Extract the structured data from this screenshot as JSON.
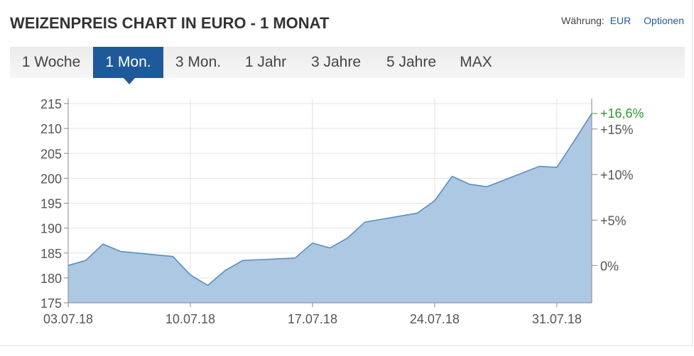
{
  "header": {
    "title": "WEIZENPREIS CHART IN EURO - 1 MONAT",
    "currency_label": "Währung:",
    "currency_value": "EUR",
    "options_label": "Optionen"
  },
  "tabs": [
    {
      "label": "1 Woche",
      "active": false
    },
    {
      "label": "1 Mon.",
      "active": true
    },
    {
      "label": "3 Mon.",
      "active": false
    },
    {
      "label": "1 Jahr",
      "active": false
    },
    {
      "label": "3 Jahre",
      "active": false
    },
    {
      "label": "5 Jahre",
      "active": false
    },
    {
      "label": "MAX",
      "active": false
    }
  ],
  "colors": {
    "accent": "#1e5a99",
    "area_fill": "#a9c5e0",
    "line": "#5b8ec2",
    "gain": "#2e9a2e"
  },
  "chart_data": {
    "type": "area",
    "x_start": "2018-07-03",
    "x": [
      "2018-07-03",
      "2018-07-04",
      "2018-07-05",
      "2018-07-06",
      "2018-07-09",
      "2018-07-10",
      "2018-07-11",
      "2018-07-12",
      "2018-07-13",
      "2018-07-16",
      "2018-07-17",
      "2018-07-18",
      "2018-07-19",
      "2018-07-20",
      "2018-07-23",
      "2018-07-24",
      "2018-07-25",
      "2018-07-26",
      "2018-07-27",
      "2018-07-30",
      "2018-07-31",
      "2018-08-01",
      "2018-08-02"
    ],
    "values": [
      182.5,
      183.5,
      186.8,
      185.3,
      184.3,
      180.6,
      178.5,
      181.5,
      183.5,
      184.0,
      187.0,
      186.0,
      188.0,
      191.2,
      193.0,
      195.5,
      200.4,
      198.8,
      198.3,
      202.4,
      202.2,
      207.5,
      213.0
    ],
    "x_tick_labels": [
      "03.07.18",
      "10.07.18",
      "17.07.18",
      "24.07.18",
      "31.07.18"
    ],
    "y_left_ticks": [
      175,
      180,
      185,
      190,
      195,
      200,
      205,
      210,
      215
    ],
    "ylim": [
      175,
      216
    ],
    "y_right_ticks": [
      {
        "label": "0%",
        "value": 182.5
      },
      {
        "label": "+5%",
        "value": 191.6
      },
      {
        "label": "+10%",
        "value": 200.75
      },
      {
        "label": "+15%",
        "value": 209.9
      }
    ],
    "change_label": "+16,6%",
    "grid": true
  }
}
